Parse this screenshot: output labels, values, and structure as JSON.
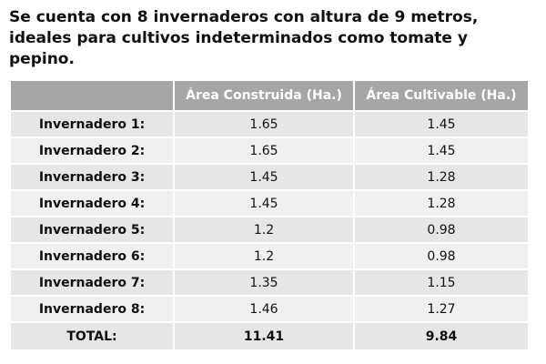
{
  "heading": "Se cuenta con 8 invernaderos con altura de 9 metros, ideales para cultivos indeterminados como tomate y pepino.",
  "table": {
    "headers": [
      "Área Construida (Ha.)",
      "Área Cultivable (Ha.)"
    ],
    "rows": [
      [
        "Invernadero 1:",
        "1.65",
        "1.45"
      ],
      [
        "Invernadero 2:",
        "1.65",
        "1.45"
      ],
      [
        "Invernadero 3:",
        "1.45",
        "1.28"
      ],
      [
        "Invernadero 4:",
        "1.45",
        "1.28"
      ],
      [
        "Invernadero 5:",
        "1.2",
        "0.98"
      ],
      [
        "Invernadero 6:",
        "1.2",
        "0.98"
      ],
      [
        "Invernadero 7:",
        "1.35",
        "1.15"
      ],
      [
        "Invernadero 8:",
        "1.46",
        "1.27"
      ]
    ],
    "total": [
      "TOTAL:",
      "11.41",
      "9.84"
    ]
  }
}
